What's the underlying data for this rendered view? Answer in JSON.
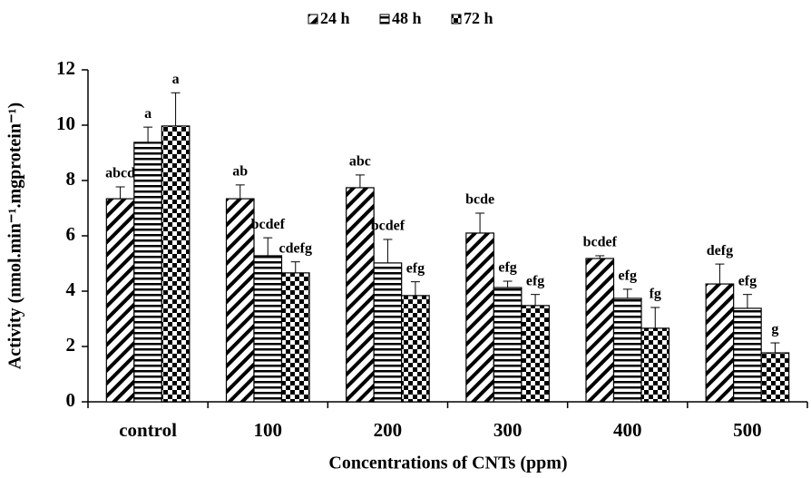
{
  "chart_data": {
    "type": "bar",
    "y_label": "Activity (nmol.min⁻¹.mgprotein⁻¹)",
    "x_label": "Concentrations of CNTs (ppm)",
    "categories": [
      "control",
      "100",
      "200",
      "300",
      "400",
      "500"
    ],
    "series": [
      {
        "name": "24 h",
        "color": "#000000",
        "pattern": "diagonal",
        "values": [
          7.34,
          7.34,
          7.74,
          6.1,
          5.18,
          4.26
        ],
        "errors": [
          0.43,
          0.5,
          0.46,
          0.72,
          0.1,
          0.72
        ],
        "annotations": [
          "abcd",
          "ab",
          "abc",
          "bcde",
          "bcdef",
          "defg"
        ]
      },
      {
        "name": "48 h",
        "color": "#000000",
        "pattern": "horizontal",
        "values": [
          9.38,
          5.28,
          5.02,
          4.13,
          3.74,
          3.38
        ],
        "errors": [
          0.55,
          0.65,
          0.85,
          0.23,
          0.33,
          0.5
        ],
        "annotations": [
          "a",
          "bcdef",
          "bcdef",
          "efg",
          "efg",
          "efg"
        ]
      },
      {
        "name": "72 h",
        "color": "#000000",
        "pattern": "checker",
        "values": [
          9.97,
          4.66,
          3.84,
          3.48,
          2.66,
          1.77
        ],
        "errors": [
          1.2,
          0.4,
          0.5,
          0.4,
          0.75,
          0.36
        ],
        "annotations": [
          "a",
          "cdefg",
          "efg",
          "efg",
          "fg",
          "g"
        ]
      }
    ],
    "ylim": [
      0,
      12
    ],
    "yticks": [
      0,
      2,
      4,
      6,
      8,
      10,
      12
    ],
    "grid": false,
    "legend": "top"
  }
}
